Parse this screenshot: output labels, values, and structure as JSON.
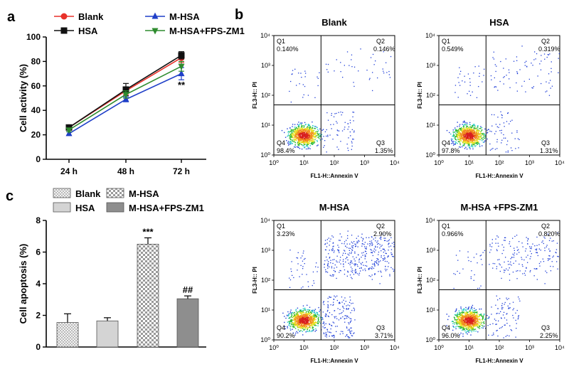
{
  "panel_labels": {
    "a": "a",
    "b": "b",
    "c": "c"
  },
  "colors": {
    "blank": "#e8312a",
    "hsa": "#111111",
    "m_hsa": "#1f3fc8",
    "fps": "#2e8b2e",
    "bar_hsa": "#d4d4d4",
    "bar_fps": "#8e8e8e"
  },
  "chart_data": [
    {
      "type": "line",
      "panel": "a",
      "ylabel": "Cell activity (%)",
      "xlabel": "",
      "ylim": [
        0,
        100
      ],
      "yticks": [
        "0",
        "20",
        "40",
        "60",
        "80",
        "100"
      ],
      "categories": [
        "24 h",
        "48 h",
        "72 h"
      ],
      "legend": [
        "Blank",
        "M-HSA",
        "HSA",
        "M-HSA+FPS-ZM1"
      ],
      "series": [
        {
          "name": "Blank",
          "values": [
            26,
            56,
            83
          ],
          "errors": [
            1.5,
            3,
            4
          ]
        },
        {
          "name": "HSA",
          "values": [
            26,
            57,
            85
          ],
          "errors": [
            1.5,
            5,
            3
          ]
        },
        {
          "name": "M-HSA",
          "values": [
            21,
            49,
            70
          ],
          "errors": [
            1.5,
            2,
            5
          ]
        },
        {
          "name": "M-HSA+FPS-ZM1",
          "values": [
            24,
            53,
            76
          ],
          "errors": [
            1.5,
            3,
            4
          ]
        }
      ],
      "annotations": [
        {
          "category": "72 h",
          "series": "M-HSA",
          "text": "**"
        }
      ]
    },
    {
      "type": "bar",
      "panel": "c",
      "ylabel": "Cell apoptosis (%)",
      "ylim": [
        0,
        8
      ],
      "yticks": [
        "0",
        "2",
        "4",
        "6",
        "8"
      ],
      "categories": [
        "Blank",
        "HSA",
        "M-HSA",
        "M-HSA+FPS-ZM1"
      ],
      "legend": [
        "Blank",
        "M-HSA",
        "HSA",
        "M-HSA+FPS-ZM1"
      ],
      "values": [
        1.55,
        1.65,
        6.5,
        3.05
      ],
      "errors": [
        0.55,
        0.2,
        0.4,
        0.18
      ],
      "annotations": [
        "",
        "",
        "***",
        "##"
      ]
    },
    {
      "type": "scatter",
      "panel": "b",
      "subtype": "flow cytometry quadrant plots",
      "xlabel": "FL1-H::Annexin V",
      "ylabel": "FL3-H:: PI",
      "xticks": [
        "10⁰",
        "10¹",
        "10²",
        "10³",
        "10⁴"
      ],
      "yticks": [
        "10⁰",
        "10¹",
        "10²",
        "10³",
        "10⁴"
      ],
      "plots": [
        {
          "title": "Blank",
          "q1_label": "Q1",
          "q1": "0.140%",
          "q2_label": "Q2",
          "q2": "0.146%",
          "q3_label": "Q3",
          "q3": "1.35%",
          "q4_label": "Q4",
          "q4": "98.4%"
        },
        {
          "title": "HSA",
          "q1_label": "Q1",
          "q1": "0.549%",
          "q2_label": "Q2",
          "q2": "0.319%",
          "q3_label": "Q3",
          "q3": "1.31%",
          "q4_label": "Q4",
          "q4": "97.8%"
        },
        {
          "title": "M-HSA",
          "q1_label": "Q1",
          "q1": "3.23%",
          "q2_label": "Q2",
          "q2": "2.90%",
          "q3_label": "Q3",
          "q3": "3.71%",
          "q4_label": "Q4",
          "q4": "90.2%"
        },
        {
          "title": "M-HSA +FPS-ZM1",
          "q1_label": "Q1",
          "q1": "0.966%",
          "q2_label": "Q2",
          "q2": "0.820%",
          "q3_label": "Q3",
          "q3": "2.25%",
          "q4_label": "Q4",
          "q4": "96.0%"
        }
      ]
    }
  ]
}
